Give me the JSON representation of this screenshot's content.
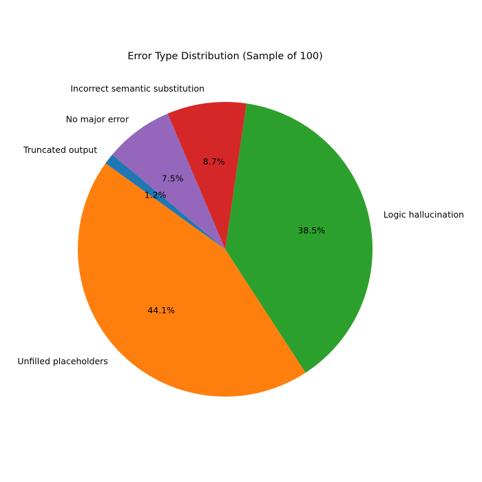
{
  "chart_data": {
    "type": "pie",
    "title": "Error Type Distribution (Sample of 100)",
    "start_angle_deg": 140,
    "direction": "counterclockwise",
    "slices": [
      {
        "label": "Truncated output",
        "value": 1.2,
        "pct_label": "1.2%",
        "color": "#1f77b4"
      },
      {
        "label": "Unfilled placeholders",
        "value": 44.1,
        "pct_label": "44.1%",
        "color": "#ff7f0e"
      },
      {
        "label": "Logic hallucination",
        "value": 38.5,
        "pct_label": "38.5%",
        "color": "#2ca02c"
      },
      {
        "label": "Incorrect semantic substitution",
        "value": 8.7,
        "pct_label": "8.7%",
        "color": "#d62728"
      },
      {
        "label": "No major error",
        "value": 7.5,
        "pct_label": "7.5%",
        "color": "#9467bd"
      }
    ]
  }
}
